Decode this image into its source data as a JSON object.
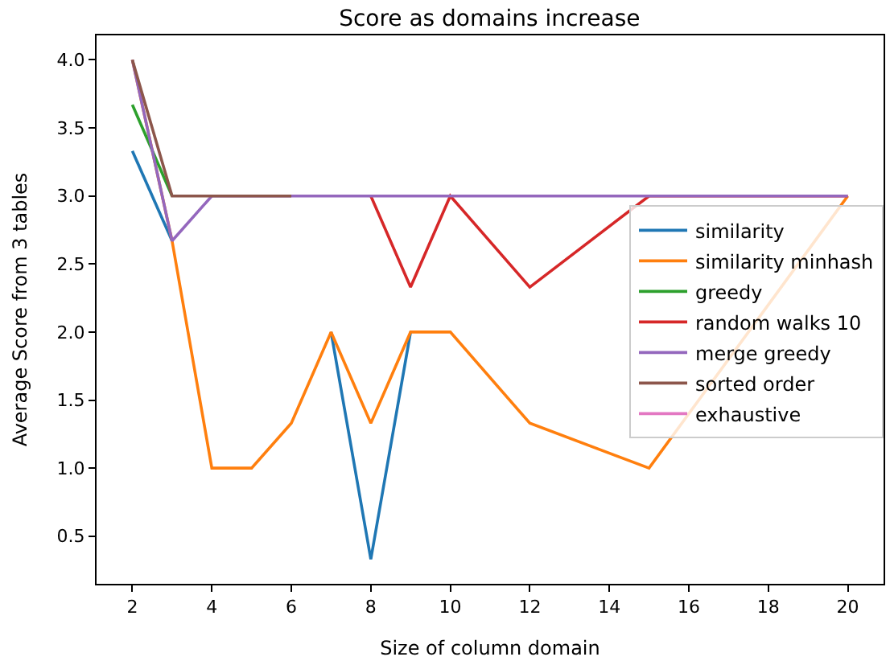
{
  "chart_data": {
    "type": "line",
    "title": "Score as domains increase",
    "xlabel": "Size of column domain",
    "ylabel": "Average Score from 3 tables",
    "x": [
      2,
      3,
      4,
      5,
      6,
      7,
      8,
      9,
      10,
      12,
      15,
      20
    ],
    "series": [
      {
        "name": "similarity",
        "color": "#1f77b4",
        "values": [
          3.33,
          2.67,
          null,
          null,
          null,
          2,
          0.33,
          2,
          null,
          null,
          null,
          null
        ]
      },
      {
        "name": "similarity minhash",
        "color": "#ff7f0e",
        "values": [
          4,
          2.67,
          1,
          1,
          1.33,
          2,
          1.33,
          2,
          2,
          1.33,
          1,
          3
        ]
      },
      {
        "name": "greedy",
        "color": "#2ca02c",
        "values": [
          3.67,
          3,
          null,
          null,
          null,
          null,
          null,
          null,
          null,
          null,
          null,
          null
        ]
      },
      {
        "name": "random walks 10",
        "color": "#d62728",
        "values": [
          null,
          null,
          null,
          null,
          null,
          null,
          3,
          2.33,
          3,
          2.33,
          3,
          3
        ]
      },
      {
        "name": "merge greedy",
        "color": "#9467bd",
        "values": [
          4,
          2.67,
          3,
          3,
          3,
          3,
          3,
          3,
          3,
          3,
          3,
          3
        ]
      },
      {
        "name": "sorted order",
        "color": "#8c564b",
        "values": [
          4,
          3,
          3,
          3,
          3,
          null,
          null,
          null,
          null,
          null,
          null,
          null
        ]
      },
      {
        "name": "exhaustive",
        "color": "#e377c2",
        "values": [
          null,
          null,
          null,
          null,
          null,
          null,
          null,
          null,
          null,
          null,
          null,
          null
        ]
      }
    ],
    "xlim": [
      1.1,
      20.9
    ],
    "ylim": [
      0.15,
      4.18
    ],
    "xticks": [
      2,
      4,
      6,
      8,
      10,
      12,
      14,
      16,
      18,
      20
    ],
    "yticks": [
      {
        "value": 0.5,
        "label": "0.5"
      },
      {
        "value": 1,
        "label": "1.0"
      },
      {
        "value": 1.5,
        "label": "1.5"
      },
      {
        "value": 2,
        "label": "2.0"
      },
      {
        "value": 2.5,
        "label": "2.5"
      },
      {
        "value": 3,
        "label": "3.0"
      },
      {
        "value": 3.5,
        "label": "3.5"
      },
      {
        "value": 4,
        "label": "4.0"
      }
    ],
    "legend": "right",
    "marker": "none",
    "line_style": "solid"
  }
}
